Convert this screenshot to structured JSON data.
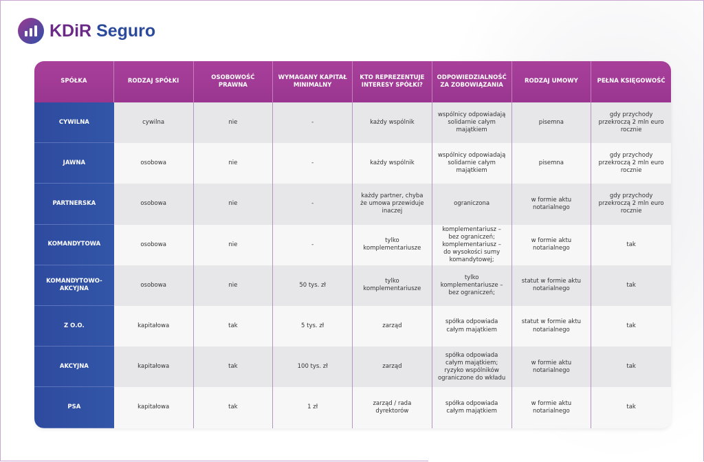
{
  "brand": {
    "part1": "KDiR",
    "part2": "Seguro"
  },
  "colors": {
    "header": "#a0388f",
    "first_column": "#2f4fa3"
  },
  "headers": [
    "Spółka",
    "Rodzaj spółki",
    "Osobowość prawna",
    "Wymagany kapitał minimalny",
    "Kto reprezentuje interesy spółki?",
    "Odpowiedzialność za zobowiązania",
    "Rodzaj umowy",
    "Pełna księgowość"
  ],
  "rows": [
    [
      "CYWILNA",
      "cywilna",
      "nie",
      "-",
      "każdy wspólnik",
      "wspólnicy odpowiadają solidarnie całym majątkiem",
      "pisemna",
      "gdy przychody przekroczą 2 mln euro rocznie"
    ],
    [
      "JAWNA",
      "osobowa",
      "nie",
      "-",
      "każdy wspólnik",
      "wspólnicy odpowiadają solidarnie całym majątkiem",
      "pisemna",
      "gdy przychody przekroczą 2 mln euro rocznie"
    ],
    [
      "PARTNERSKA",
      "osobowa",
      "nie",
      "-",
      "każdy partner, chyba że umowa przewiduje inaczej",
      "ograniczona",
      "w formie aktu notarialnego",
      "gdy przychody przekroczą 2 mln euro rocznie"
    ],
    [
      "KOMANDYTOWA",
      "osobowa",
      "nie",
      "-",
      "tylko komplementariusze",
      "komplementariusz – bez ograniczeń; komplementariusz – do wysokości sumy komandytowej;",
      "w formie aktu notarialnego",
      "tak"
    ],
    [
      "KOMANDYTOWO-AKCYJNA",
      "osobowa",
      "nie",
      "50 tys. zł",
      "tylko komplementariusze",
      "tylko komplementariusze – bez ograniczeń;",
      "statut w formie aktu notarialnego",
      "tak"
    ],
    [
      "Z O.O.",
      "kapitałowa",
      "tak",
      "5 tys. zł",
      "zarząd",
      "spółka odpowiada całym majątkiem",
      "statut w formie aktu notarialnego",
      "tak"
    ],
    [
      "AKCYJNA",
      "kapitałowa",
      "tak",
      "100 tys. zł",
      "zarząd",
      "spółka odpowiada całym majątkiem; ryzyko wspólników ograniczone do wkładu",
      "w formie aktu notarialnego",
      "tak"
    ],
    [
      "PSA",
      "kapitałowa",
      "tak",
      "1 zł",
      "zarząd / rada dyrektorów",
      "spółka odpowiada całym majątkiem",
      "w formie aktu notarialnego",
      "tak"
    ]
  ]
}
